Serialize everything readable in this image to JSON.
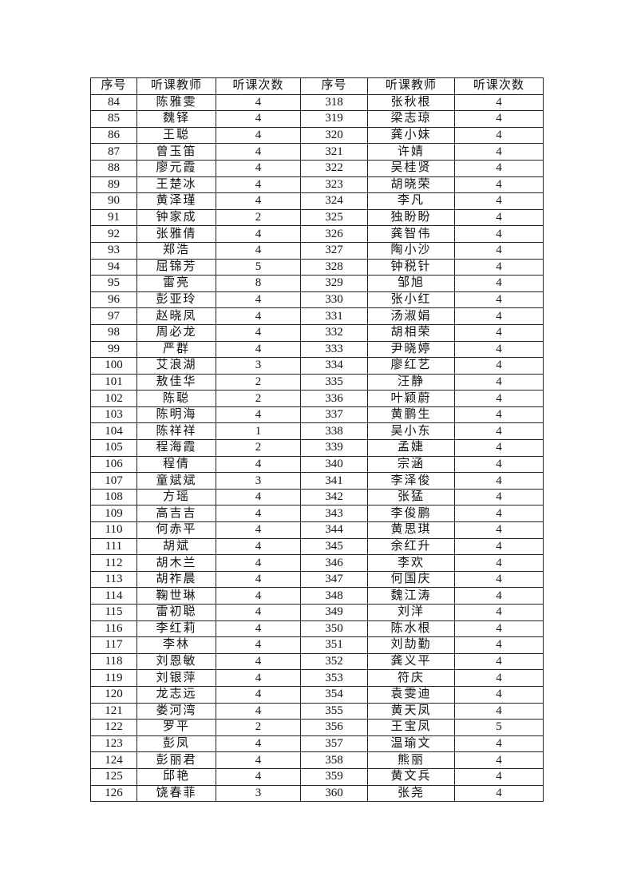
{
  "table": {
    "headers": [
      "序号",
      "听课教师",
      "听课次数",
      "序号",
      "听课教师",
      "听课次数"
    ],
    "rows": [
      [
        "84",
        "陈雅雯",
        "4",
        "318",
        "张秋根",
        "4"
      ],
      [
        "85",
        "魏铎",
        "4",
        "319",
        "梁志琼",
        "4"
      ],
      [
        "86",
        "王聪",
        "4",
        "320",
        "龚小妹",
        "4"
      ],
      [
        "87",
        "曾玉笛",
        "4",
        "321",
        "许婧",
        "4"
      ],
      [
        "88",
        "廖元霞",
        "4",
        "322",
        "吴桂贤",
        "4"
      ],
      [
        "89",
        "王楚冰",
        "4",
        "323",
        "胡晓荣",
        "4"
      ],
      [
        "90",
        "黄泽瑾",
        "4",
        "324",
        "李凡",
        "4"
      ],
      [
        "91",
        "钟家成",
        "2",
        "325",
        "独盼盼",
        "4"
      ],
      [
        "92",
        "张雅倩",
        "4",
        "326",
        "龚智伟",
        "4"
      ],
      [
        "93",
        "郑浩",
        "4",
        "327",
        "陶小沙",
        "4"
      ],
      [
        "94",
        "屈锦芳",
        "5",
        "328",
        "钟税针",
        "4"
      ],
      [
        "95",
        "雷亮",
        "8",
        "329",
        "邹旭",
        "4"
      ],
      [
        "96",
        "彭亚玲",
        "4",
        "330",
        "张小红",
        "4"
      ],
      [
        "97",
        "赵晓凤",
        "4",
        "331",
        "汤淑娟",
        "4"
      ],
      [
        "98",
        "周必龙",
        "4",
        "332",
        "胡相荣",
        "4"
      ],
      [
        "99",
        "严群",
        "4",
        "333",
        "尹晓婷",
        "4"
      ],
      [
        "100",
        "艾浪湖",
        "3",
        "334",
        "廖红艺",
        "4"
      ],
      [
        "101",
        "敖佳华",
        "2",
        "335",
        "汪静",
        "4"
      ],
      [
        "102",
        "陈聪",
        "2",
        "336",
        "叶颖蔚",
        "4"
      ],
      [
        "103",
        "陈明海",
        "4",
        "337",
        "黄鹏生",
        "4"
      ],
      [
        "104",
        "陈祥祥",
        "1",
        "338",
        "吴小东",
        "4"
      ],
      [
        "105",
        "程海霞",
        "2",
        "339",
        "孟婕",
        "4"
      ],
      [
        "106",
        "程倩",
        "4",
        "340",
        "宗涵",
        "4"
      ],
      [
        "107",
        "童斌斌",
        "3",
        "341",
        "李泽俊",
        "4"
      ],
      [
        "108",
        "方瑶",
        "4",
        "342",
        "张猛",
        "4"
      ],
      [
        "109",
        "高吉吉",
        "4",
        "343",
        "李俊鹏",
        "4"
      ],
      [
        "110",
        "何赤平",
        "4",
        "344",
        "黄思琪",
        "4"
      ],
      [
        "111",
        "胡斌",
        "4",
        "345",
        "余红升",
        "4"
      ],
      [
        "112",
        "胡木兰",
        "4",
        "346",
        "李欢",
        "4"
      ],
      [
        "113",
        "胡祚晨",
        "4",
        "347",
        "何国庆",
        "4"
      ],
      [
        "114",
        "鞠世琳",
        "4",
        "348",
        "魏江涛",
        "4"
      ],
      [
        "115",
        "雷初聪",
        "4",
        "349",
        "刘洋",
        "4"
      ],
      [
        "116",
        "李红莉",
        "4",
        "350",
        "陈水根",
        "4"
      ],
      [
        "117",
        "李林",
        "4",
        "351",
        "刘劼勤",
        "4"
      ],
      [
        "118",
        "刘恩敏",
        "4",
        "352",
        "龚义平",
        "4"
      ],
      [
        "119",
        "刘银萍",
        "4",
        "353",
        "符庆",
        "4"
      ],
      [
        "120",
        "龙志远",
        "4",
        "354",
        "袁雯迪",
        "4"
      ],
      [
        "121",
        "娄河湾",
        "4",
        "355",
        "黄天凤",
        "4"
      ],
      [
        "122",
        "罗平",
        "2",
        "356",
        "王宝凤",
        "5"
      ],
      [
        "123",
        "彭凤",
        "4",
        "357",
        "温瑜文",
        "4"
      ],
      [
        "124",
        "彭丽君",
        "4",
        "358",
        "熊丽",
        "4"
      ],
      [
        "125",
        "邱艳",
        "4",
        "359",
        "黄文兵",
        "4"
      ],
      [
        "126",
        "饶春菲",
        "3",
        "360",
        "张尧",
        "4"
      ]
    ]
  }
}
